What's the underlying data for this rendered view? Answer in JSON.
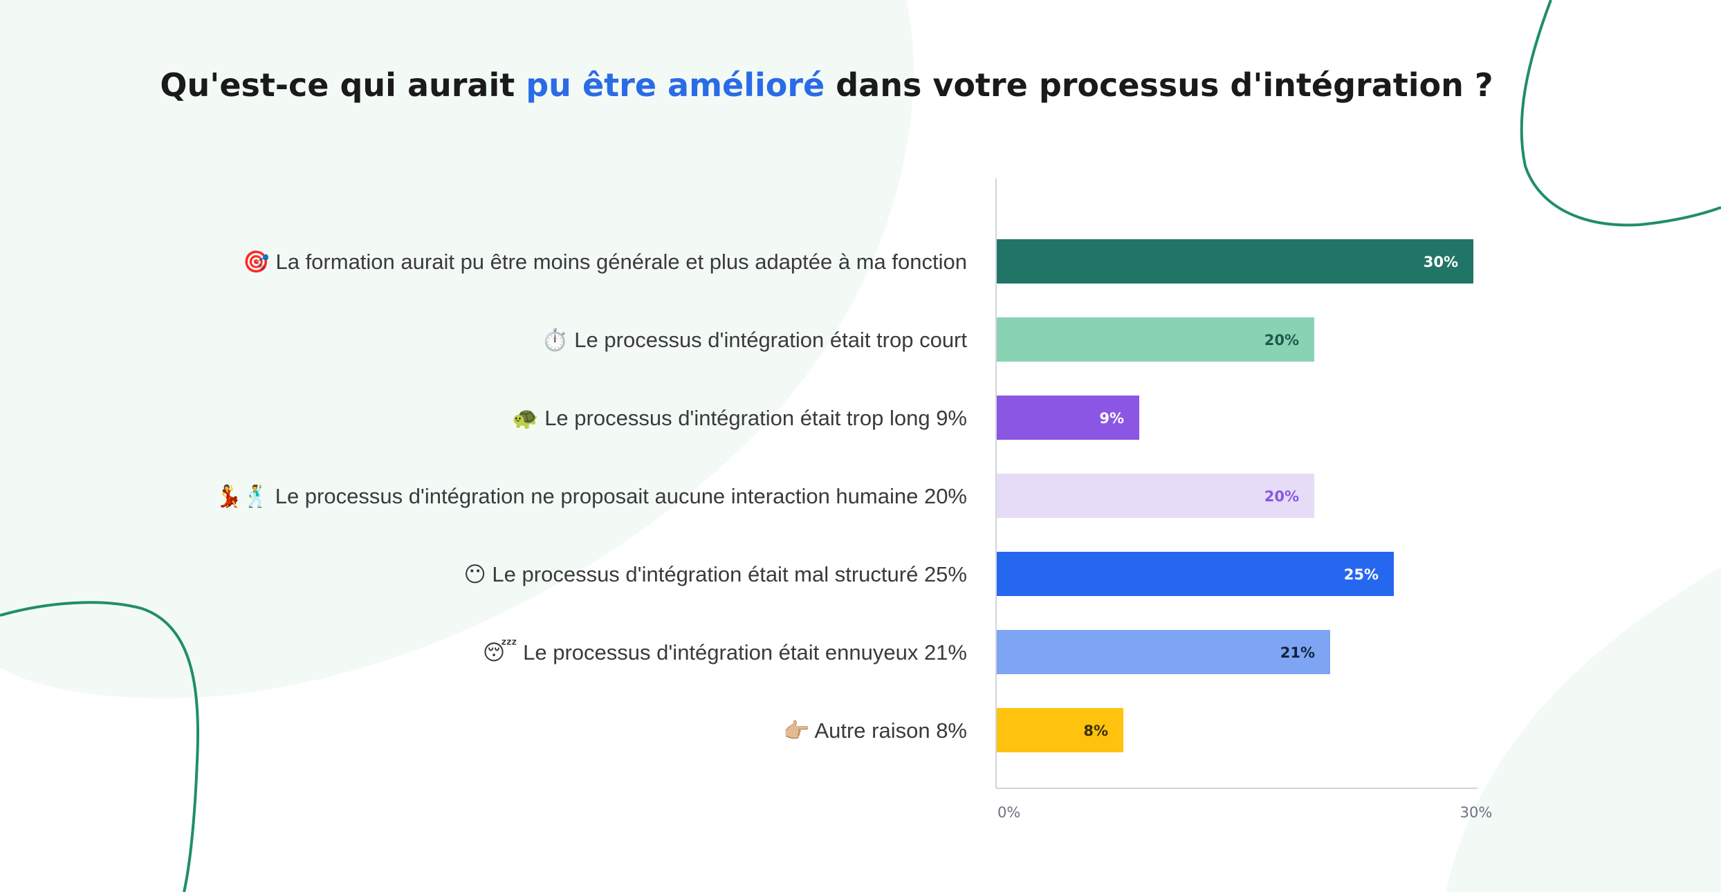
{
  "title": {
    "before": "Qu'est-ce qui aurait ",
    "highlight": "pu être amélioré",
    "after": " dans votre processus d'intégration ?"
  },
  "colors": {
    "highlight": "#2a6be6",
    "decor_line": "#1f8f63",
    "decor_blob": "#f3faf6"
  },
  "chart_data": {
    "type": "bar",
    "orientation": "horizontal",
    "title": "Qu'est-ce qui aurait pu être amélioré dans votre processus d'intégration ?",
    "xlabel": "",
    "ylabel": "",
    "xlim": [
      0,
      30
    ],
    "grid": false,
    "unit": "%",
    "categories": [
      "🎯 La formation aurait pu être moins générale et plus adaptée à ma fonction",
      "⏱️ Le processus d'intégration était trop court",
      "🐢 Le processus d'intégration était trop long 9%",
      "💃🕺 Le processus d'intégration ne proposait aucune interaction humaine 20%",
      "😶 Le processus d'intégration était mal structuré 25%",
      "😴 Le processus d'intégration était ennuyeux 21%",
      "👉🏼 Autre raison 8%"
    ],
    "values": [
      30,
      20,
      9,
      20,
      25,
      21,
      8
    ],
    "value_labels": [
      "30%",
      "20%",
      "9%",
      "20%",
      "25%",
      "21%",
      "8%"
    ],
    "bar_colors": [
      "#217566",
      "#88d3b3",
      "#8b56e3",
      "#e6dcf7",
      "#2667f0",
      "#7ea5f4",
      "#ffc20e"
    ],
    "label_colors": [
      "#ffffff",
      "#1e5a4c",
      "#ffffff",
      "#8b56e3",
      "#ffffff",
      "#14213d",
      "#3a3000"
    ],
    "x_ticks": [
      0,
      30
    ],
    "x_tick_labels": [
      "0%",
      "30%"
    ]
  }
}
